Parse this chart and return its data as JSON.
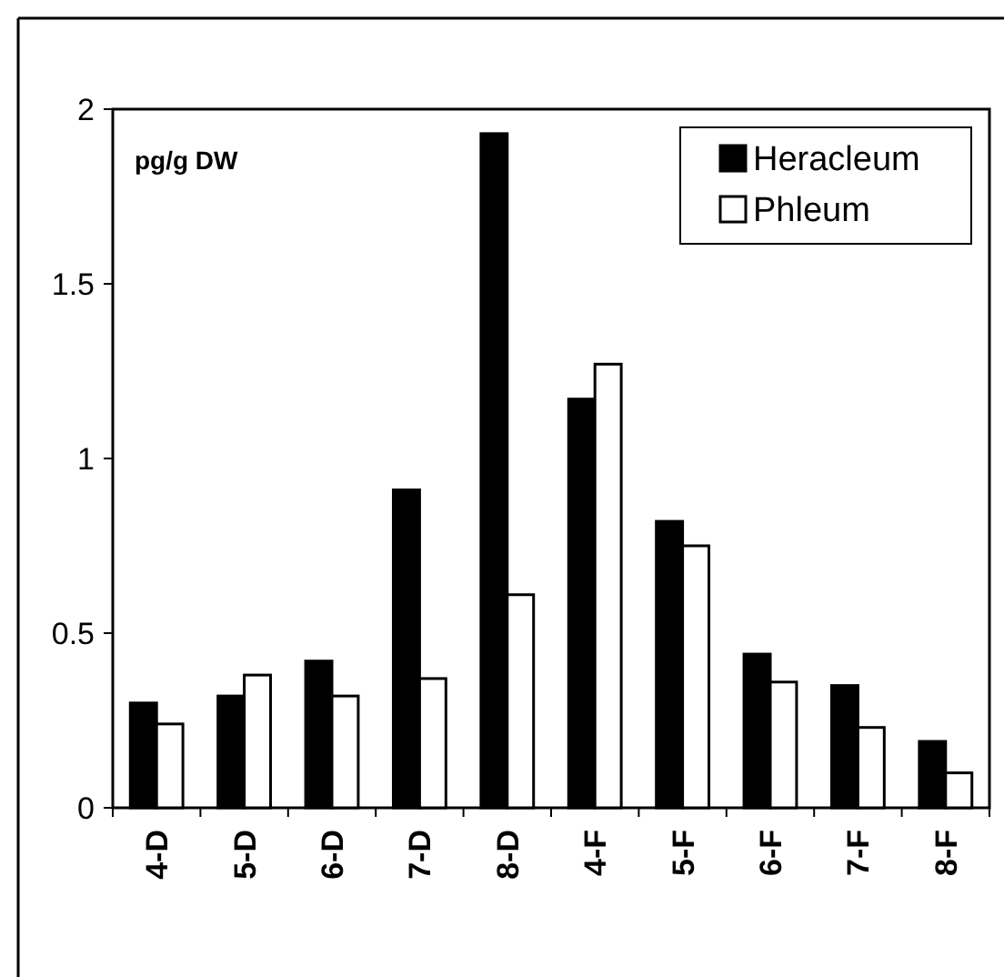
{
  "chart_data": {
    "type": "bar",
    "categories": [
      "4-D",
      "5-D",
      "6-D",
      "7-D",
      "8-D",
      "4-F",
      "5-F",
      "6-F",
      "7-F",
      "8-F"
    ],
    "series": [
      {
        "name": "Heracleum",
        "color": "#000000",
        "values": [
          0.3,
          0.32,
          0.42,
          0.91,
          1.93,
          1.17,
          0.82,
          0.44,
          0.35,
          0.19
        ]
      },
      {
        "name": "Phleum",
        "color": "#ffffff",
        "values": [
          0.24,
          0.38,
          0.32,
          0.37,
          0.61,
          1.27,
          0.75,
          0.36,
          0.23,
          0.1
        ]
      }
    ],
    "ylim": [
      0,
      2
    ],
    "yticks": [
      0,
      0.5,
      1,
      1.5,
      2
    ],
    "annotations": [
      "pg/g DW"
    ],
    "legend": "top right",
    "grid": false
  }
}
